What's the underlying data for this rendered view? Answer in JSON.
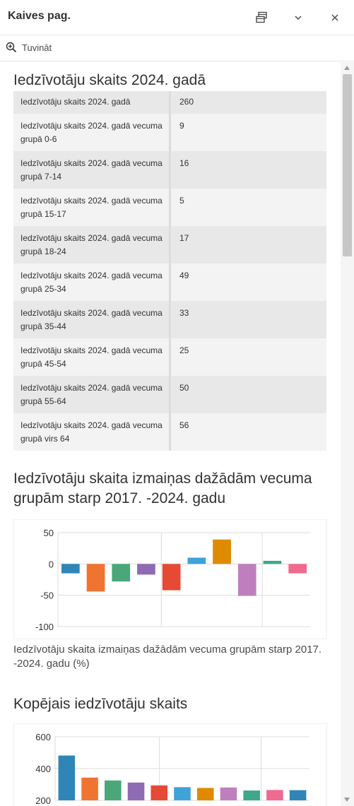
{
  "panel": {
    "title": "Kaives pag.",
    "zoom_label": "Tuvināt",
    "icons": [
      "dock-icon",
      "chevron-down-icon",
      "close-icon",
      "zoom-in-icon"
    ]
  },
  "section1": {
    "title": "Iedzīvotāju skaits 2024. gadā",
    "rows": [
      {
        "label": "Iedzīvotāju skaits 2024. gadā",
        "value": "260"
      },
      {
        "label": "Iedzīvotāju skaits 2024. gadā vecuma grupā 0-6",
        "value": "9"
      },
      {
        "label": "Iedzīvotāju skaits 2024. gadā vecuma grupā 7-14",
        "value": "16"
      },
      {
        "label": "Iedzīvotāju skaits 2024. gadā vecuma grupā 15-17",
        "value": "5"
      },
      {
        "label": "Iedzīvotāju skaits 2024. gadā vecuma grupā 18-24",
        "value": "17"
      },
      {
        "label": "Iedzīvotāju skaits 2024. gadā vecuma grupā 25-34",
        "value": "49"
      },
      {
        "label": "Iedzīvotāju skaits 2024. gadā vecuma grupā 35-44",
        "value": "33"
      },
      {
        "label": "Iedzīvotāju skaits 2024. gadā vecuma grupā 45-54",
        "value": "25"
      },
      {
        "label": "Iedzīvotāju skaits 2024. gadā vecuma grupā 55-64",
        "value": "50"
      },
      {
        "label": "Iedzīvotāju skaits 2024. gadā vecuma grupā virs 64",
        "value": "56"
      }
    ]
  },
  "section2": {
    "title": "Iedzīvotāju skaita izmaiņas dažādām vecuma grupām starp 2017. -2024. gadu",
    "caption": "Iedzīvotāju skaita izmaiņas dažādām vecuma grupām starp 2017. -2024. gadu (%)"
  },
  "section3": {
    "title": "Kopējais iedzīvotāju skaits"
  },
  "chart_data": [
    {
      "type": "bar",
      "ylim": [
        -100,
        50
      ],
      "yticks": [
        50,
        0,
        -50,
        -100
      ],
      "grid": true,
      "values": [
        -15,
        -44,
        -28,
        -17,
        -42,
        10,
        39,
        -51,
        5,
        -15
      ],
      "colors": [
        "#2f86b6",
        "#f07431",
        "#4aa77a",
        "#8f6bb3",
        "#e64a35",
        "#3fa2d9",
        "#e08a00",
        "#bf7fbf",
        "#3da88a",
        "#ef6a8e"
      ]
    },
    {
      "type": "bar",
      "ylim": [
        200,
        600
      ],
      "yticks": [
        600,
        400,
        200
      ],
      "grid": true,
      "values": [
        482,
        343,
        325,
        312,
        294,
        283,
        278,
        281,
        262,
        265,
        264
      ],
      "colors": [
        "#2f86b6",
        "#f07431",
        "#4aa77a",
        "#8f6bb3",
        "#e64a35",
        "#3fa2d9",
        "#e08a00",
        "#bf7fbf",
        "#3da88a",
        "#ef6a8e",
        "#2f86b6"
      ]
    }
  ]
}
